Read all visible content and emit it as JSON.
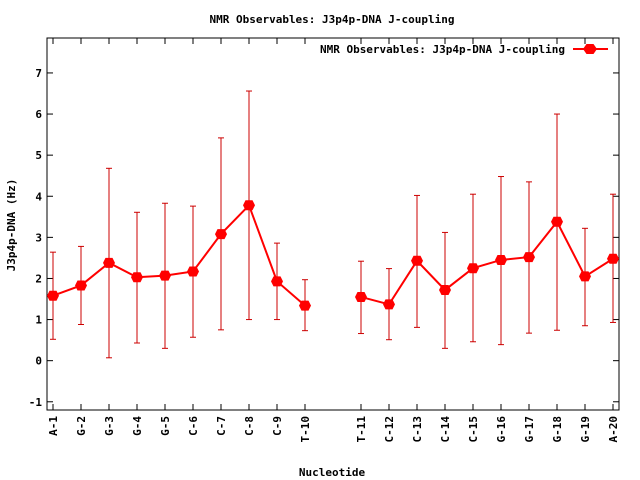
{
  "chart_data": {
    "type": "line",
    "title": "NMR Observables: J3p4p-DNA J-coupling",
    "xlabel": "Nucleotide",
    "ylabel": "J3p4p-DNA (Hz)",
    "ylim": [
      -1.2,
      7.85
    ],
    "yticks": [
      -1,
      0,
      1,
      2,
      3,
      4,
      5,
      6,
      7
    ],
    "legend_position": "top-right",
    "grid": false,
    "categories": [
      "A-1",
      "G-2",
      "G-3",
      "G-4",
      "G-5",
      "C-6",
      "C-7",
      "C-8",
      "C-9",
      "T-10",
      "T-11",
      "C-12",
      "C-13",
      "C-14",
      "C-15",
      "G-16",
      "G-17",
      "G-18",
      "G-19",
      "A-20"
    ],
    "x_positions": [
      1,
      2,
      3,
      4,
      5,
      6,
      7,
      8,
      9,
      10,
      12,
      13,
      14,
      15,
      16,
      17,
      18,
      19,
      20,
      21
    ],
    "series": [
      {
        "name": "NMR Observables: J3p4p-DNA J-coupling",
        "color": "#ff0000",
        "values": [
          1.58,
          1.83,
          2.38,
          2.03,
          2.07,
          2.17,
          3.08,
          3.78,
          1.93,
          1.34,
          1.55,
          1.37,
          2.43,
          1.72,
          2.25,
          2.45,
          2.52,
          3.38,
          2.05,
          2.48
        ],
        "err_low": [
          0.52,
          0.88,
          0.07,
          0.43,
          0.3,
          0.57,
          0.75,
          1.0,
          1.0,
          0.73,
          0.66,
          0.51,
          0.81,
          0.3,
          0.46,
          0.39,
          0.67,
          0.74,
          0.85,
          0.93
        ],
        "err_high": [
          2.64,
          2.78,
          4.68,
          3.61,
          3.83,
          3.76,
          5.42,
          6.56,
          2.86,
          1.97,
          2.42,
          2.24,
          4.02,
          3.12,
          4.05,
          4.48,
          4.35,
          6.0,
          3.22,
          4.05
        ]
      }
    ],
    "colors": {
      "line": "#ff0000",
      "error_bar": "#cc0000",
      "axis": "#000000"
    }
  }
}
